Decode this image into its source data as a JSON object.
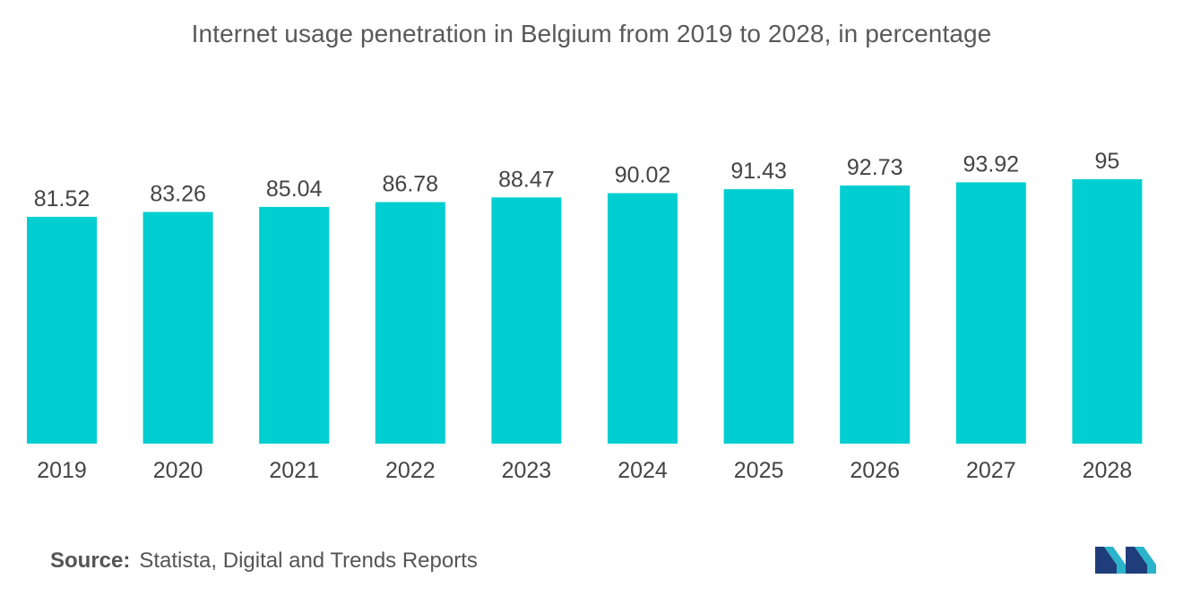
{
  "chart_data": {
    "type": "bar",
    "title": "Internet usage penetration in Belgium from 2019 to 2028, in percentage",
    "categories": [
      "2019",
      "2020",
      "2021",
      "2022",
      "2023",
      "2024",
      "2025",
      "2026",
      "2027",
      "2028"
    ],
    "values": [
      81.52,
      83.26,
      85.04,
      86.78,
      88.47,
      90.02,
      91.43,
      92.73,
      93.92,
      95
    ],
    "value_labels": [
      "81.52",
      "83.26",
      "85.04",
      "86.78",
      "88.47",
      "90.02",
      "91.43",
      "92.73",
      "93.92",
      "95"
    ],
    "xlabel": "",
    "ylabel": "",
    "ylim": [
      0,
      95
    ],
    "grid": false,
    "legend": "none",
    "bar_color": "#00CED1"
  },
  "source": {
    "label": "Source:",
    "text": "Statista, Digital and Trends Reports"
  },
  "logo": {
    "icon": "mordor-intelligence-logo-icon",
    "colors": [
      "#1F3D7A",
      "#2AB3C9"
    ]
  }
}
